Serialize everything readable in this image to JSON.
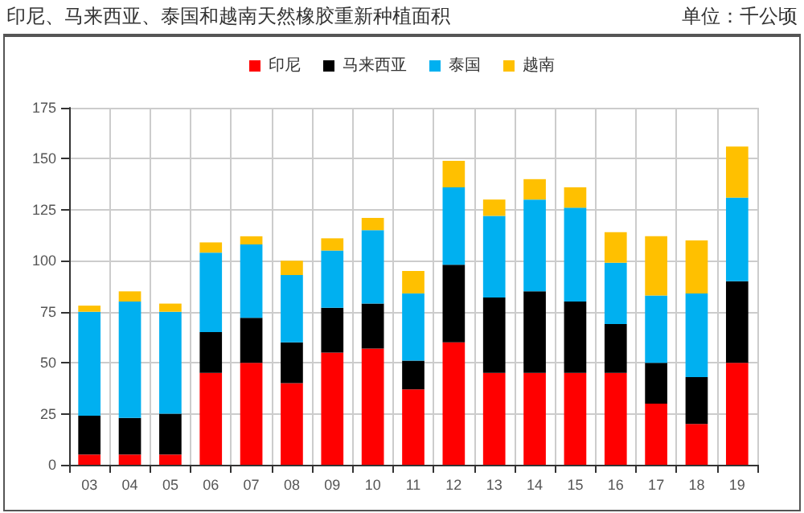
{
  "chart_data": {
    "type": "bar",
    "title": "印尼、马来西亚、泰国和越南天然橡胶重新种植面积",
    "subtitle": "单位：千公顷",
    "stacked": true,
    "legend": "top",
    "grid": true,
    "categories": [
      "03",
      "04",
      "05",
      "06",
      "07",
      "08",
      "09",
      "10",
      "11",
      "12",
      "13",
      "14",
      "15",
      "16",
      "17",
      "18",
      "19"
    ],
    "series": [
      {
        "name": "印尼",
        "color": "#ff0000",
        "values": [
          5,
          5,
          5,
          45,
          50,
          40,
          55,
          57,
          37,
          60,
          45,
          45,
          45,
          45,
          30,
          20,
          50
        ]
      },
      {
        "name": "马来西亚",
        "color": "#000000",
        "values": [
          19,
          18,
          20,
          20,
          22,
          20,
          22,
          22,
          14,
          38,
          37,
          40,
          35,
          24,
          20,
          23,
          40
        ]
      },
      {
        "name": "泰国",
        "color": "#00b0f0",
        "values": [
          51,
          57,
          50,
          39,
          36,
          33,
          28,
          36,
          33,
          38,
          40,
          45,
          46,
          30,
          33,
          41,
          41
        ]
      },
      {
        "name": "越南",
        "color": "#ffc000",
        "values": [
          3,
          5,
          4,
          5,
          4,
          7,
          6,
          6,
          11,
          13,
          8,
          10,
          10,
          15,
          29,
          26,
          25
        ]
      }
    ],
    "ylim": [
      0,
      175
    ],
    "yticks": [
      0,
      25,
      50,
      75,
      100,
      125,
      150,
      175
    ]
  }
}
